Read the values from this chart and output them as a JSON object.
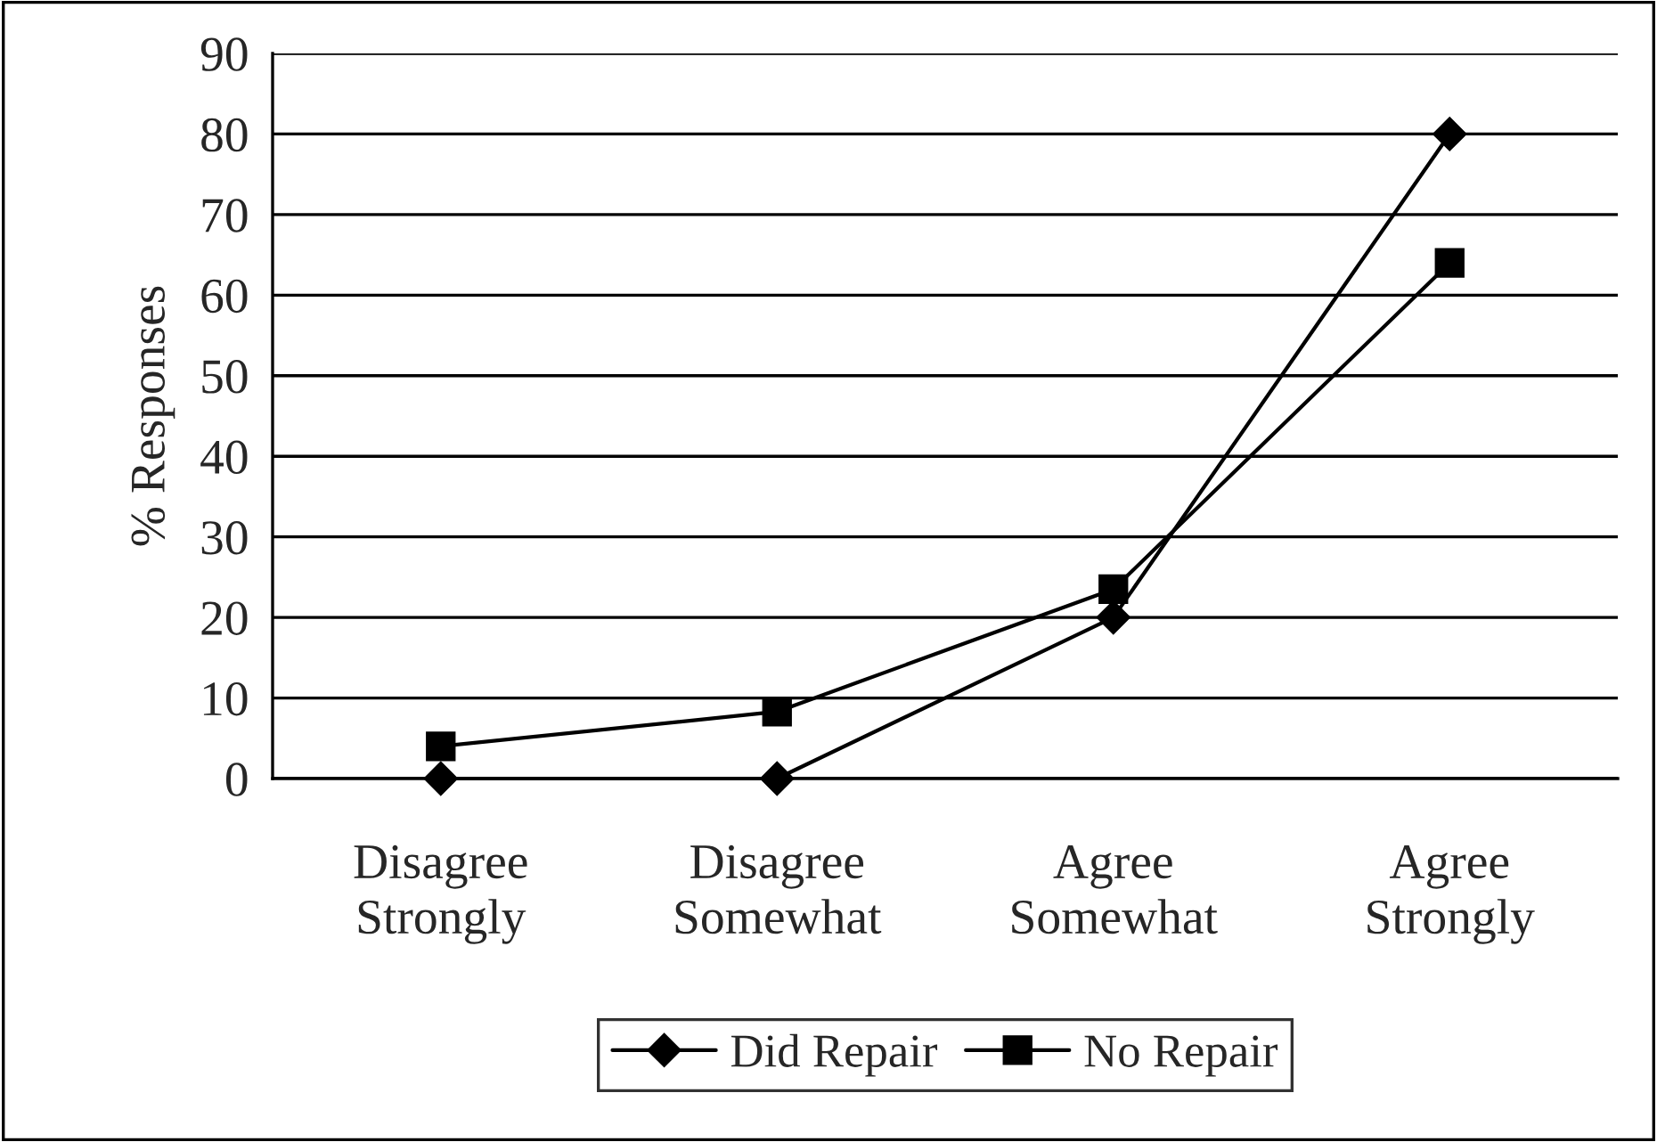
{
  "chart_data": {
    "type": "line",
    "ylabel": "% Responses",
    "categories": [
      "Disagree\nStrongly",
      "Disagree\nSomewhat",
      "Agree\nSomewhat",
      "Agree\nStrongly"
    ],
    "series": [
      {
        "name": "Did Repair",
        "color": "#000000",
        "marker": "diamond",
        "values": [
          0,
          0,
          20,
          80
        ]
      },
      {
        "name": "No Repair",
        "color": "#000000",
        "marker": "square",
        "values": [
          4,
          8.3,
          23.5,
          64
        ]
      }
    ],
    "ylim": [
      0,
      90
    ],
    "yticks": [
      0,
      10,
      20,
      30,
      40,
      50,
      60,
      70,
      80,
      90
    ],
    "grid": "y",
    "legend": "bottom",
    "line_style": "solid"
  }
}
